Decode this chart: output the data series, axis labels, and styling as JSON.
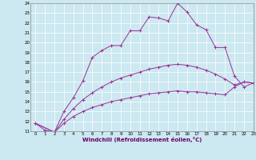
{
  "xlabel": "Windchill (Refroidissement éolien,°C)",
  "bg_color": "#cce8f0",
  "grid_color": "#ffffff",
  "line_color": "#993399",
  "line1_x": [
    0,
    1,
    2,
    3,
    4,
    5,
    6,
    7,
    8,
    9,
    10,
    11,
    12,
    13,
    14,
    15,
    16,
    17,
    18,
    19,
    20,
    21,
    22,
    23
  ],
  "line1_y": [
    11.8,
    11.1,
    10.9,
    13.0,
    14.4,
    16.1,
    18.5,
    19.2,
    19.7,
    19.7,
    21.2,
    21.2,
    22.6,
    22.5,
    22.2,
    24.0,
    23.1,
    21.8,
    21.3,
    19.5,
    19.5,
    16.6,
    15.5,
    15.9
  ],
  "line2_x": [
    0,
    2,
    3,
    4,
    5,
    6,
    7,
    8,
    9,
    10,
    11,
    12,
    13,
    14,
    15,
    16,
    17,
    18,
    19,
    20,
    21,
    22,
    23
  ],
  "line2_y": [
    11.8,
    10.9,
    12.2,
    13.3,
    14.2,
    14.9,
    15.5,
    16.0,
    16.4,
    16.7,
    17.0,
    17.3,
    17.5,
    17.7,
    17.8,
    17.7,
    17.5,
    17.2,
    16.8,
    16.3,
    15.7,
    16.0,
    15.9
  ],
  "line3_x": [
    0,
    2,
    3,
    4,
    5,
    6,
    7,
    8,
    9,
    10,
    11,
    12,
    13,
    14,
    15,
    16,
    17,
    18,
    19,
    20,
    21,
    22,
    23
  ],
  "line3_y": [
    11.8,
    10.9,
    11.8,
    12.5,
    13.0,
    13.4,
    13.7,
    14.0,
    14.2,
    14.4,
    14.6,
    14.8,
    14.9,
    15.0,
    15.1,
    15.0,
    15.0,
    14.9,
    14.8,
    14.7,
    15.5,
    16.0,
    15.9
  ],
  "ylim": [
    11,
    24
  ],
  "xlim": [
    -0.5,
    23
  ],
  "yticks": [
    11,
    12,
    13,
    14,
    15,
    16,
    17,
    18,
    19,
    20,
    21,
    22,
    23,
    24
  ],
  "xticks": [
    0,
    1,
    2,
    3,
    4,
    5,
    6,
    7,
    8,
    9,
    10,
    11,
    12,
    13,
    14,
    15,
    16,
    17,
    18,
    19,
    20,
    21,
    22,
    23
  ]
}
